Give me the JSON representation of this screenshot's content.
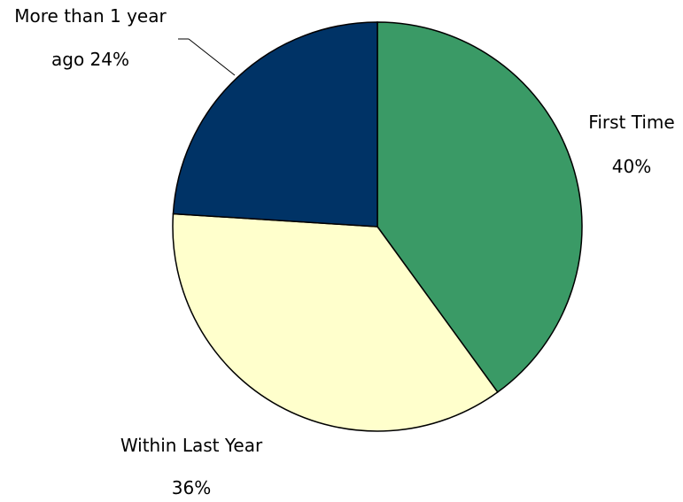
{
  "chart_data": {
    "type": "pie",
    "title": "",
    "start_angle_deg": 0,
    "direction": "clockwise",
    "slices": [
      {
        "label_line1": "First Time",
        "label_line2": "40%",
        "value": 40,
        "color": "#3a9a66"
      },
      {
        "label_line1": "Within Last Year",
        "label_line2": "36%",
        "value": 36,
        "color": "#ffffcc"
      },
      {
        "label_line1": "More than 1 year",
        "label_line2": "ago 24%",
        "value": 24,
        "color": "#003366"
      }
    ],
    "stroke_color": "#000000",
    "legend": "none"
  }
}
